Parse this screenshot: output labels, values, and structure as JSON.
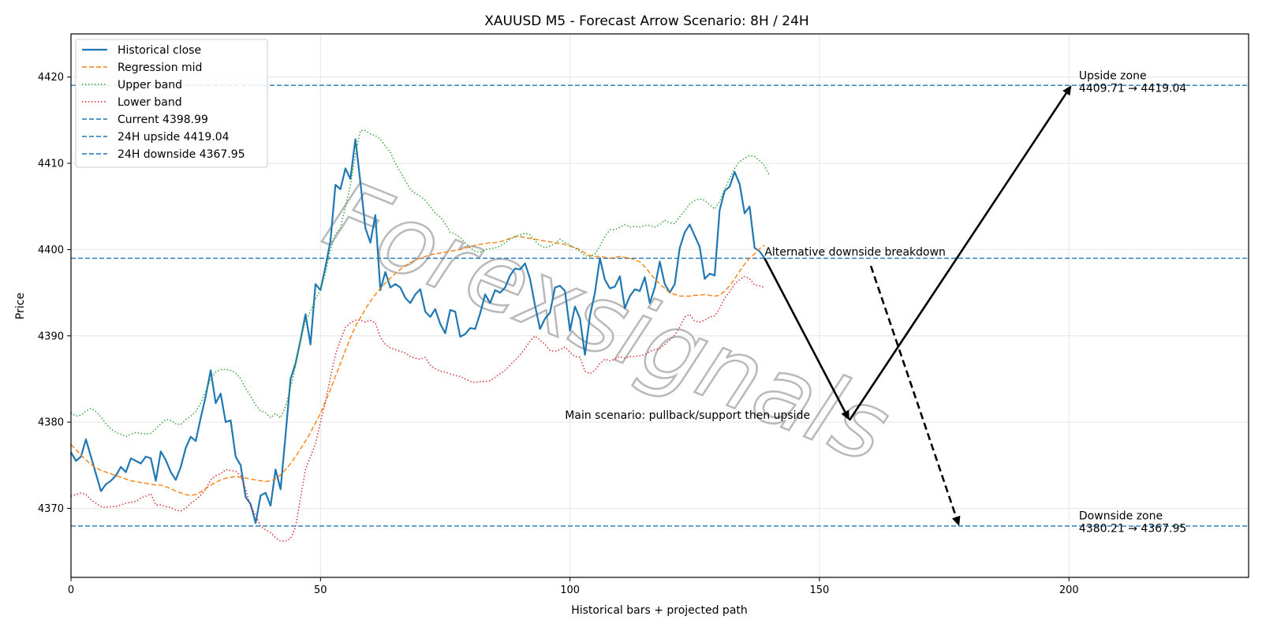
{
  "chart_data": {
    "type": "line",
    "title": "XAUUSD M5 - Forecast Arrow Scenario: 8H / 24H",
    "xlabel": "Historical bars + projected path",
    "ylabel": "Price",
    "xlim": [
      0,
      236
    ],
    "ylim": [
      4362,
      4425
    ],
    "grid": true,
    "legend_position": "top-left",
    "x_ticks": [
      0,
      50,
      100,
      150,
      200
    ],
    "y_ticks": [
      4370,
      4380,
      4390,
      4400,
      4410,
      4420
    ],
    "watermark": "Forexsignals",
    "colors": {
      "historical": "#1f77b4",
      "regression": "#ff7f0e",
      "upper": "#2ca02c",
      "lower": "#d62728",
      "hline": "#1f77b4",
      "arrow": "#000000"
    },
    "series": [
      {
        "name": "Historical close",
        "style": "solid",
        "color": "#1f77b4",
        "values": [
          4376.5,
          4375.5,
          4376,
          4378,
          4376,
          4374,
          4372,
          4372.8,
          4373.2,
          4373.8,
          4374.8,
          4374.2,
          4375.8,
          4375.5,
          4375.2,
          4376,
          4375.8,
          4373.2,
          4376.6,
          4375.6,
          4374.2,
          4373.3,
          4374.8,
          4377,
          4378.3,
          4377.8,
          4380.5,
          4383,
          4386,
          4382.2,
          4383.3,
          4380,
          4380.2,
          4376,
          4375,
          4371.3,
          4370.5,
          4368.3,
          4371.5,
          4371.8,
          4370.3,
          4374.5,
          4372.2,
          4378.5,
          4385,
          4386.8,
          4389.5,
          4392.5,
          4389,
          4396,
          4395.3,
          4398,
          4401,
          4407.5,
          4407,
          4409.4,
          4408.2,
          4412.8,
          4407.8,
          4402.5,
          4400.8,
          4404,
          4395.3,
          4397.4,
          4395.6,
          4396,
          4395.6,
          4394.4,
          4393.8,
          4394.8,
          4395.4,
          4392.8,
          4392.2,
          4393.1,
          4391.4,
          4390.3,
          4393,
          4392.8,
          4389.9,
          4390.2,
          4390.9,
          4390.8,
          4392.6,
          4394.8,
          4393.8,
          4395.3,
          4395,
          4395.6,
          4397,
          4397.8,
          4397.7,
          4398.4,
          4396.6,
          4393.5,
          4390.8,
          4392,
          4392.7,
          4395.6,
          4395.8,
          4395.2,
          4390.6,
          4393.4,
          4392,
          4387.8,
          4392.3,
          4395,
          4399,
          4396.5,
          4395.5,
          4395.7,
          4396.9,
          4393.2,
          4394.6,
          4395.4,
          4395.2,
          4396.8,
          4393.8,
          4395.6,
          4398.6,
          4396,
          4395,
          4396,
          4400.2,
          4402,
          4402.9,
          4401.6,
          4400.3,
          4396.6,
          4397.2,
          4397,
          4404.6,
          4406.8,
          4407.3,
          4409,
          4407.6,
          4404.2,
          4405,
          4400.2,
          4399.8,
          4399
        ]
      },
      {
        "name": "Regression mid",
        "style": "dashed",
        "color": "#ff7f0e",
        "values": [
          4377.4,
          4376.8,
          4376.2,
          4375.6,
          4375.1,
          4374.7,
          4374.4,
          4374.2,
          4374,
          4373.8,
          4373.6,
          4373.4,
          4373.2,
          4373.1,
          4373,
          4372.9,
          4372.8,
          4372.7,
          4372.7,
          4372.5,
          4372.3,
          4372,
          4371.8,
          4371.6,
          4371.5,
          4371.6,
          4371.9,
          4372.3,
          4372.7,
          4373,
          4373.3,
          4373.5,
          4373.6,
          4373.7,
          4373.6,
          4373.5,
          4373.4,
          4373.3,
          4373.2,
          4373.1,
          4373.2,
          4373.4,
          4373.9,
          4374.5,
          4375.2,
          4376,
          4376.9,
          4377.8,
          4378.8,
          4379.9,
          4381,
          4382.4,
          4383.8,
          4385.3,
          4386.8,
          4388.3,
          4389.8,
          4391.1,
          4392.1,
          4393.1,
          4394,
          4394.8,
          4395.5,
          4396.1,
          4396.7,
          4397.2,
          4397.7,
          4398.1,
          4398.5,
          4398.8,
          4399,
          4399.2,
          4399.4,
          4399.5,
          4399.6,
          4399.7,
          4399.8,
          4399.9,
          4400,
          4400.2,
          4400.3,
          4400.5,
          4400.6,
          4400.7,
          4400.8,
          4400.8,
          4400.9,
          4401.1,
          4401.3,
          4401.5,
          4401.5,
          4401.4,
          4401.3,
          4401.2,
          4401.1,
          4401,
          4400.9,
          4400.8,
          4400.7,
          4400.6,
          4400.4,
          4400.2,
          4400,
          4399.6,
          4399.3,
          4399.2,
          4399.2,
          4399.1,
          4399,
          4399.1,
          4399.2,
          4399.1,
          4399,
          4398.8,
          4398.6,
          4398,
          4397.3,
          4396.6,
          4396,
          4395.5,
          4395,
          4394.8,
          4394.6,
          4394.6,
          4394.6,
          4394.7,
          4394.7,
          4394.8,
          4394.7,
          4394.6,
          4394.7,
          4395.2,
          4395.8,
          4396.6,
          4397.5,
          4398.3,
          4399,
          4399.5,
          4400.1,
          4400.5
        ]
      },
      {
        "name": "Upper band",
        "style": "dotted",
        "color": "#2ca02c",
        "values": [
          4381.1,
          4380.7,
          4380.8,
          4381.3,
          4381.6,
          4381.2,
          4380.6,
          4379.8,
          4379.2,
          4378.8,
          4378.6,
          4378.3,
          4378.6,
          4378.8,
          4378.7,
          4378.6,
          4378.7,
          4379.2,
          4379.8,
          4380.3,
          4380.2,
          4379.8,
          4379.7,
          4380.3,
          4380.7,
          4381.2,
          4382.2,
          4383.6,
          4385,
          4385.8,
          4386.1,
          4386.1,
          4386,
          4385.7,
          4385,
          4383.9,
          4383,
          4382,
          4381.3,
          4381.1,
          4380.5,
          4381,
          4380.5,
          4381.8,
          4384,
          4386.5,
          4389.5,
          4391.8,
          4392.8,
          4394.3,
          4395.3,
          4397.3,
          4400,
          4401.8,
          4402.5,
          4405,
          4407.5,
          4411,
          4413.8,
          4413.8,
          4413.4,
          4413.2,
          4412.8,
          4412,
          4411.3,
          4410,
          4409,
          4408,
          4407,
          4406.5,
          4406.2,
          4405.7,
          4405,
          4404.2,
          4403.8,
          4403,
          4402,
          4401.8,
          4401.4,
          4400.8,
          4400.2,
          4399.8,
          4399.7,
          4400,
          4400.1,
          4400.2,
          4400.4,
          4400.8,
          4401.2,
          4401.5,
          4401.7,
          4401.9,
          4401.7,
          4401,
          4400.5,
          4400.2,
          4400.4,
          4400.7,
          4401.2,
          4400.8,
          4400.5,
          4400.2,
          4399.8,
          4399.3,
          4399.2,
          4399.5,
          4400.4,
          4401.5,
          4402.3,
          4402.3,
          4402.6,
          4402.9,
          4402.6,
          4402.7,
          4402.6,
          4402.8,
          4402.8,
          4402.6,
          4402.9,
          4403.4,
          4403.1,
          4403,
          4403.8,
          4404.5,
          4405.3,
          4405.7,
          4405.9,
          4405.7,
          4405.2,
          4404.7,
          4405.6,
          4407,
          4408.2,
          4409.4,
          4410.2,
          4410.6,
          4410.9,
          4410.8,
          4410.3,
          4409.7,
          4408.6
        ]
      },
      {
        "name": "Lower band",
        "style": "dotted",
        "color": "#d62728",
        "values": [
          4371.4,
          4371.6,
          4371.8,
          4371.6,
          4371,
          4370.6,
          4370.2,
          4370.1,
          4370.2,
          4370.2,
          4370.4,
          4370.6,
          4370.7,
          4370.8,
          4371.2,
          4371.4,
          4371.7,
          4370.4,
          4370.4,
          4370.2,
          4370.1,
          4369.8,
          4369.7,
          4370,
          4370.6,
          4371,
          4371.5,
          4372.2,
          4373.3,
          4373.8,
          4374,
          4374.5,
          4374.4,
          4374.3,
          4373.8,
          4372.2,
          4370.2,
          4369.2,
          4367.9,
          4367.5,
          4367.2,
          4366.6,
          4366.2,
          4366.2,
          4366.5,
          4367.8,
          4371.2,
          4374.5,
          4376,
          4377.5,
          4380,
          4382.4,
          4385.2,
          4387.8,
          4389.5,
          4391,
          4391.5,
          4391.8,
          4391.8,
          4391.6,
          4391.8,
          4391.5,
          4389.8,
          4389,
          4388.6,
          4388.4,
          4388.2,
          4388,
          4387.6,
          4387.4,
          4387.3,
          4387.5,
          4386.6,
          4386.2,
          4385.9,
          4385.8,
          4385.6,
          4385.4,
          4385.3,
          4385,
          4384.7,
          4384.6,
          4384.7,
          4384.7,
          4384.8,
          4385.2,
          4385.6,
          4386,
          4386.6,
          4387.2,
          4387.8,
          4388.5,
          4389.4,
          4390,
          4389.5,
          4389,
          4388.3,
          4388.2,
          4388.4,
          4388.7,
          4388.1,
          4387.6,
          4387.5,
          4385.9,
          4385.6,
          4386,
          4386.8,
          4387.3,
          4387.1,
          4387.3,
          4387.6,
          4387.4,
          4387.6,
          4387.6,
          4387.7,
          4387.8,
          4388.2,
          4388.4,
          4388.5,
          4389,
          4389.5,
          4390.1,
          4391,
          4392.2,
          4392.5,
          4391.7,
          4391.6,
          4391.8,
          4392.2,
          4392.3,
          4393.2,
          4394.4,
          4395.1,
          4396,
          4396.5,
          4396.9,
          4396.6,
          4395.9,
          4395.8,
          4395.6
        ]
      }
    ],
    "hlines": [
      {
        "name": "Current 4398.99",
        "y": 4398.99
      },
      {
        "name": "24H upside 4419.04",
        "y": 4419.04
      },
      {
        "name": "24H downside 4367.95",
        "y": 4367.95
      }
    ],
    "arrows": [
      {
        "id": "main-down",
        "from": [
          139,
          4399
        ],
        "to": [
          156,
          4380.21
        ],
        "style": "solid"
      },
      {
        "id": "main-up",
        "from": [
          156,
          4380.21
        ],
        "to": [
          200.5,
          4419.04
        ],
        "style": "solid"
      },
      {
        "id": "alt-down",
        "from": [
          160.3,
          4398.1
        ],
        "to": [
          178,
          4367.95
        ],
        "style": "dashed"
      }
    ],
    "annotations": [
      {
        "id": "alt-label",
        "text": "Alternative downside breakdown",
        "x": 139,
        "y": 4399.3
      },
      {
        "id": "main-label",
        "text": "Main scenario: pullback/support then upside",
        "x": 99,
        "y": 4380.4
      },
      {
        "id": "upside-zone",
        "lines": [
          "Upside zone",
          "4409.71 → 4419.04"
        ],
        "x": 202,
        "y": 4419.75
      },
      {
        "id": "downside-zone",
        "lines": [
          "Downside zone",
          "4380.21 → 4367.95"
        ],
        "x": 202,
        "y": 4368.7
      }
    ]
  }
}
